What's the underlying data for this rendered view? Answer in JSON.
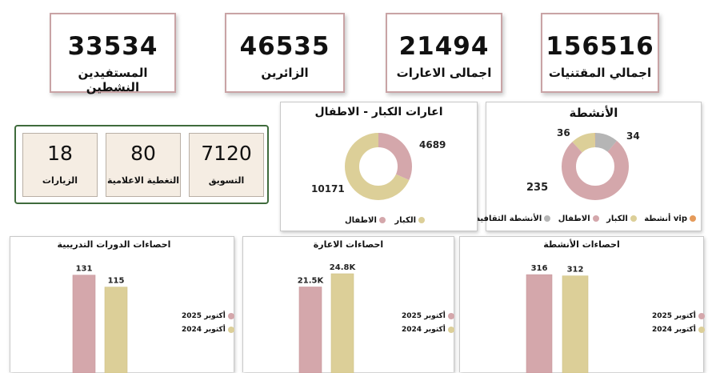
{
  "kpis": [
    {
      "value": "156516",
      "label": "اجمالي المقتنيات"
    },
    {
      "value": "21494",
      "label": "اجمالى الاعارات"
    },
    {
      "value": "46535",
      "label": "الزائرين"
    },
    {
      "value": "33534",
      "label": "المستفيدين النشطين"
    }
  ],
  "mini_stats": [
    {
      "value": "7120",
      "label": "التسويق"
    },
    {
      "value": "80",
      "label": "التغطية الاعلامية"
    },
    {
      "value": "18",
      "label": "الزيارات"
    }
  ],
  "colors": {
    "pink": "#d4a7ab",
    "gold": "#dccf98",
    "gray": "#b5b5b5",
    "orange": "#e59a5a",
    "kpi_border": "#c9a3a5",
    "green_border": "#3f6b3c"
  },
  "chart_data": [
    {
      "type": "pie",
      "title": "الأنشطة",
      "slices": [
        {
          "label": "الأنشطة الثقافية",
          "value": 34,
          "color": "#b5b5b5"
        },
        {
          "label": "الاطفال",
          "value": 235,
          "color": "#d4a7ab"
        },
        {
          "label": "الكبار",
          "value": 36,
          "color": "#dccf98"
        },
        {
          "label": "أنشطة vip",
          "value": 1,
          "color": "#e59a5a"
        }
      ],
      "data_labels": [
        "34",
        "235",
        "36"
      ],
      "legend": [
        "vip أنشطة",
        "الكبار",
        "الاطفال",
        "الأنشطة الثقافية"
      ]
    },
    {
      "type": "pie",
      "title": "اعارات الكبار - الاطفال",
      "slices": [
        {
          "label": "الاطفال",
          "value": 4689,
          "color": "#d4a7ab"
        },
        {
          "label": "الكبار",
          "value": 10171,
          "color": "#dccf98"
        }
      ],
      "data_labels": [
        "4689",
        "10171"
      ],
      "legend": [
        "الاطفال",
        "الكبار"
      ]
    },
    {
      "type": "bar",
      "title": "احصاءات الدورات التدريبية",
      "series": [
        {
          "name": "أكتوبر 2025",
          "values": [
            131
          ],
          "label": "131"
        },
        {
          "name": "أكتوبر 2024",
          "values": [
            115
          ],
          "label": "115"
        }
      ],
      "ylim": [
        0,
        150
      ]
    },
    {
      "type": "bar",
      "title": "احصاءات الاعارة",
      "series": [
        {
          "name": "أكتوبر 2025",
          "values": [
            21500
          ],
          "label": "21.5K"
        },
        {
          "name": "أكتوبر 2024",
          "values": [
            24800
          ],
          "label": "24.8K"
        }
      ],
      "ylim": [
        0,
        28000
      ]
    },
    {
      "type": "bar",
      "title": "احصاءات الأنشطة",
      "series": [
        {
          "name": "أكتوبر 2025",
          "values": [
            316
          ],
          "label": "316"
        },
        {
          "name": "أكتوبر 2024",
          "values": [
            312
          ],
          "label": "312"
        }
      ],
      "ylim": [
        0,
        360
      ]
    }
  ]
}
